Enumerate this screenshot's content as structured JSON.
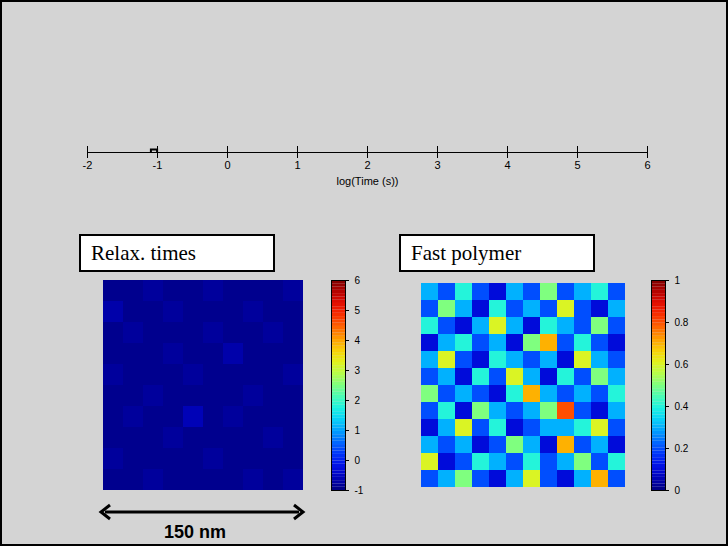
{
  "chart_data": [
    {
      "type": "scatter",
      "xlabel": "log(Time (s))",
      "xlim": [
        -2,
        6
      ],
      "xticks": [
        -2,
        -1,
        0,
        1,
        2,
        3,
        4,
        5,
        6
      ],
      "x": [
        -1.05
      ],
      "marker": "square"
    },
    {
      "type": "heatmap",
      "title": "Relax. times",
      "scale_bar": "150 nm",
      "cells": [
        [
          -0.9,
          -0.9,
          -0.8,
          -0.9,
          -0.9,
          -0.8,
          -0.9,
          -0.9,
          -0.9,
          -0.8
        ],
        [
          -0.7,
          -0.9,
          -0.9,
          -0.8,
          -0.9,
          -0.9,
          -0.9,
          -0.8,
          -0.9,
          -0.9
        ],
        [
          -0.9,
          -0.8,
          -0.9,
          -0.9,
          -0.9,
          -0.8,
          -0.9,
          -0.9,
          -0.8,
          -0.9
        ],
        [
          -0.9,
          -0.9,
          -0.9,
          -0.8,
          -0.9,
          -0.9,
          -0.7,
          -0.9,
          -0.9,
          -0.9
        ],
        [
          -0.8,
          -0.9,
          -0.9,
          -0.9,
          -0.8,
          -0.9,
          -0.9,
          -0.9,
          -0.9,
          -0.8
        ],
        [
          -0.9,
          -0.9,
          -0.8,
          -0.9,
          -0.9,
          -0.9,
          -0.9,
          -0.8,
          -0.9,
          -0.9
        ],
        [
          -0.9,
          -0.8,
          -0.9,
          -0.9,
          -0.6,
          -0.9,
          -0.8,
          -0.9,
          -0.9,
          -0.9
        ],
        [
          -0.9,
          -0.9,
          -0.9,
          -0.8,
          -0.9,
          -0.9,
          -0.9,
          -0.9,
          -0.8,
          -0.9
        ],
        [
          -0.8,
          -0.9,
          -0.9,
          -0.9,
          -0.9,
          -0.8,
          -0.9,
          -0.9,
          -0.9,
          -0.9
        ],
        [
          -0.9,
          -0.9,
          -0.8,
          -0.9,
          -0.9,
          -0.9,
          -0.9,
          -0.8,
          -0.9,
          -0.8
        ]
      ],
      "colorbar": {
        "range": [
          -1,
          6
        ],
        "ticks": [
          -1,
          0,
          1,
          2,
          3,
          4,
          5,
          6
        ]
      }
    },
    {
      "type": "heatmap",
      "title": "Fast polymer",
      "cells": [
        [
          0.3,
          0.2,
          0.4,
          0.2,
          0.1,
          0.3,
          0.2,
          0.5,
          0.2,
          0.3,
          0.4,
          0.2
        ],
        [
          0.2,
          0.5,
          0.3,
          0.1,
          0.4,
          0.2,
          0.3,
          0.2,
          0.6,
          0.2,
          0.1,
          0.3
        ],
        [
          0.4,
          0.2,
          0.1,
          0.3,
          0.6,
          0.3,
          0.1,
          0.4,
          0.3,
          0.2,
          0.5,
          0.2
        ],
        [
          0.1,
          0.3,
          0.4,
          0.2,
          0.3,
          0.1,
          0.5,
          0.7,
          0.2,
          0.4,
          0.2,
          0.1
        ],
        [
          0.3,
          0.6,
          0.2,
          0.1,
          0.4,
          0.3,
          0.2,
          0.3,
          0.1,
          0.6,
          0.3,
          0.2
        ],
        [
          0.2,
          0.3,
          0.1,
          0.4,
          0.2,
          0.6,
          0.3,
          0.1,
          0.4,
          0.2,
          0.5,
          0.3
        ],
        [
          0.5,
          0.2,
          0.3,
          0.2,
          0.1,
          0.4,
          0.7,
          0.3,
          0.2,
          0.3,
          0.2,
          0.4
        ],
        [
          0.2,
          0.4,
          0.1,
          0.5,
          0.3,
          0.2,
          0.3,
          0.5,
          0.8,
          0.2,
          0.1,
          0.3
        ],
        [
          0.1,
          0.3,
          0.6,
          0.2,
          0.4,
          0.1,
          0.2,
          0.3,
          0.3,
          0.4,
          0.6,
          0.2
        ],
        [
          0.3,
          0.2,
          0.3,
          0.1,
          0.2,
          0.5,
          0.3,
          0.1,
          0.7,
          0.2,
          0.3,
          0.1
        ],
        [
          0.6,
          0.1,
          0.2,
          0.4,
          0.3,
          0.2,
          0.4,
          0.2,
          0.3,
          0.5,
          0.2,
          0.4
        ],
        [
          0.2,
          0.3,
          0.5,
          0.2,
          0.1,
          0.3,
          0.6,
          0.2,
          0.1,
          0.3,
          0.7,
          0.2
        ]
      ],
      "colorbar": {
        "range": [
          0,
          1
        ],
        "ticks": [
          0,
          0.2,
          0.4,
          0.6,
          0.8,
          1
        ]
      }
    }
  ]
}
